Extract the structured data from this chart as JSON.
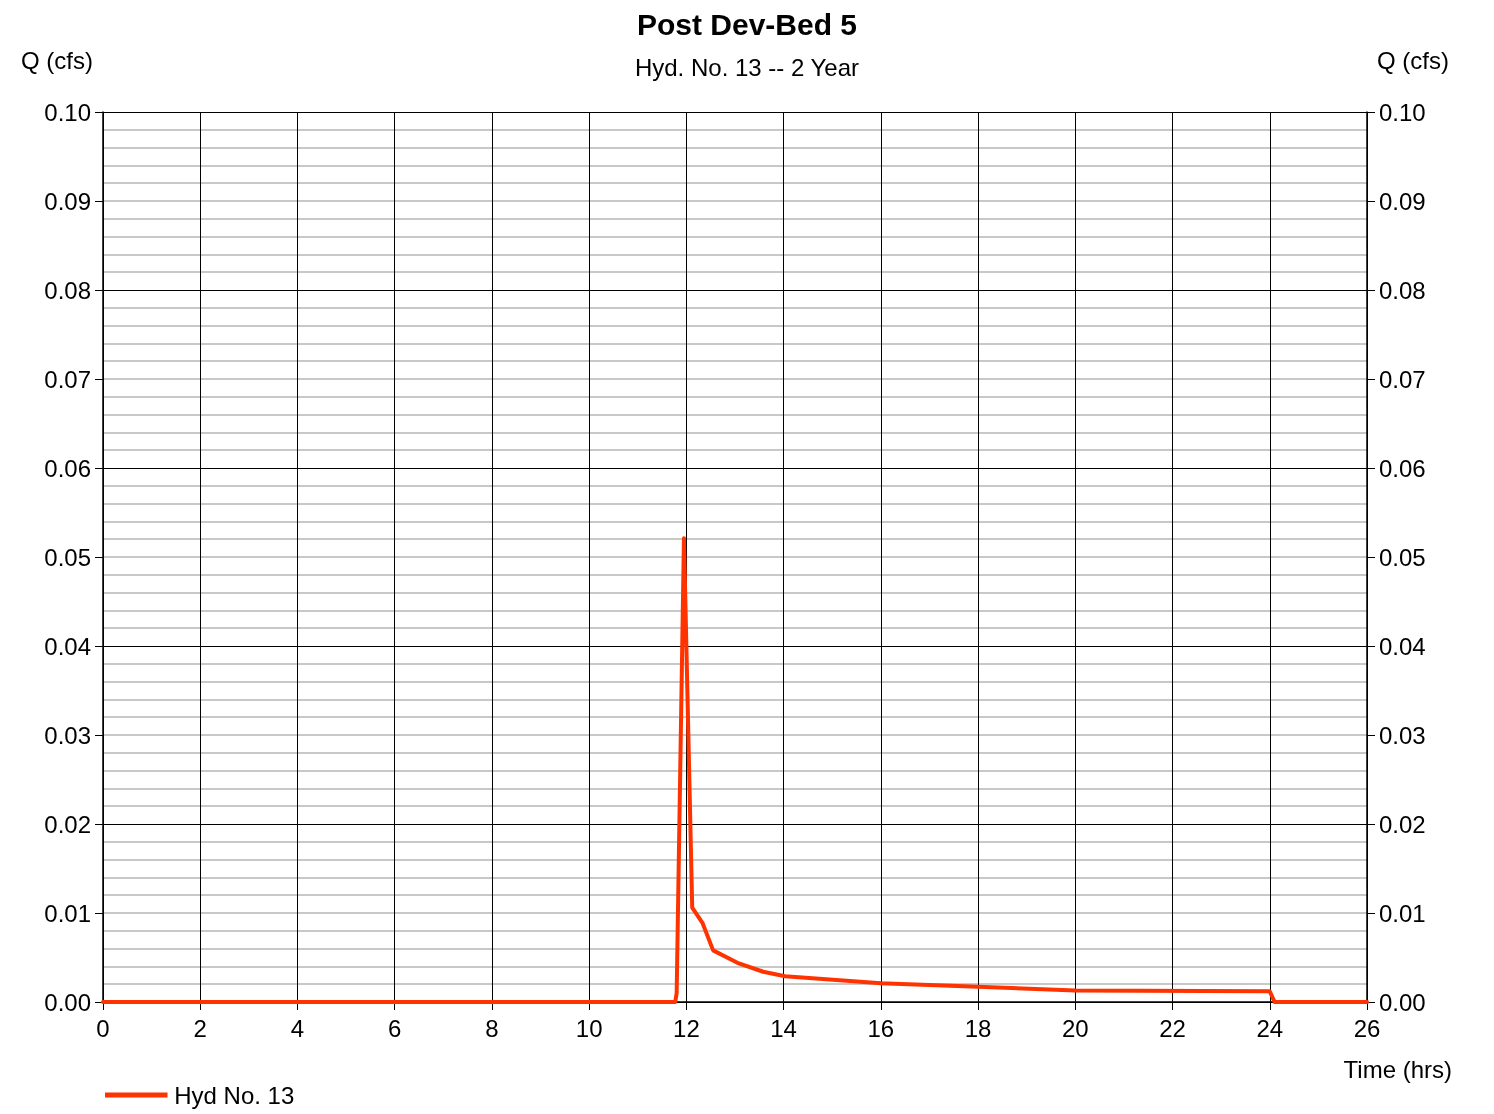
{
  "chart_data": {
    "type": "line",
    "title": "Post Dev-Bed 5",
    "subtitle": "Hyd. No. 13 -- 2 Year",
    "xlabel": "Time (hrs)",
    "ylabel": "Q (cfs)",
    "y2label": "Q (cfs)",
    "x": [
      0,
      11.77,
      11.8,
      11.95,
      12.12,
      12.33,
      12.55,
      13.05,
      13.58,
      14.03,
      16,
      18,
      20,
      24,
      24.1,
      26
    ],
    "series": [
      {
        "name": "Hyd No. 13",
        "color": "#ff3300",
        "values": [
          0,
          0,
          0.001,
          0.0521,
          0.0106,
          0.0089,
          0.0058,
          0.0044,
          0.0034,
          0.0029,
          0.0021,
          0.0017,
          0.0013,
          0.0012,
          0,
          0
        ]
      }
    ],
    "xlim": [
      0,
      26
    ],
    "xticks": [
      0,
      2,
      4,
      6,
      8,
      10,
      12,
      14,
      16,
      18,
      20,
      22,
      24,
      26
    ],
    "ylim": [
      0,
      0.1
    ],
    "yticks": [
      {
        "value": 0,
        "label": "0.00"
      },
      {
        "value": 0.01,
        "label": "0.01"
      },
      {
        "value": 0.02,
        "label": "0.02"
      },
      {
        "value": 0.03,
        "label": "0.03"
      },
      {
        "value": 0.04,
        "label": "0.04"
      },
      {
        "value": 0.05,
        "label": "0.05"
      },
      {
        "value": 0.06,
        "label": "0.06"
      },
      {
        "value": 0.07,
        "label": "0.07"
      },
      {
        "value": 0.08,
        "label": "0.08"
      },
      {
        "value": 0.09,
        "label": "0.09"
      },
      {
        "value": 0.1,
        "label": "0.10"
      }
    ],
    "y2lim": [
      0,
      0.1
    ],
    "y2ticks": [
      {
        "value": 0,
        "label": "0.00"
      },
      {
        "value": 0.01,
        "label": "0.01"
      },
      {
        "value": 0.02,
        "label": "0.02"
      },
      {
        "value": 0.03,
        "label": "0.03"
      },
      {
        "value": 0.04,
        "label": "0.04"
      },
      {
        "value": 0.05,
        "label": "0.05"
      },
      {
        "value": 0.06,
        "label": "0.06"
      },
      {
        "value": 0.07,
        "label": "0.07"
      },
      {
        "value": 0.08,
        "label": "0.08"
      },
      {
        "value": 0.09,
        "label": "0.09"
      },
      {
        "value": 0.1,
        "label": "0.10"
      }
    ],
    "grid": true,
    "legend": "bottom left",
    "marker": "none",
    "line_style": "solid"
  }
}
